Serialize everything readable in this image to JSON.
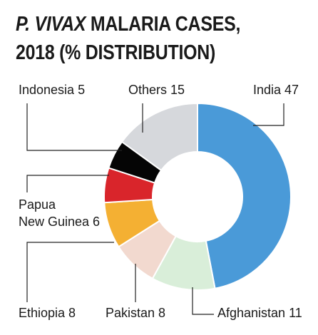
{
  "title": {
    "line1_italic": "P. VIVAX",
    "line1_rest": " MALARIA CASES,",
    "line2": "2018 (% DISTRIBUTION)"
  },
  "chart_data": {
    "type": "pie",
    "variant": "donut",
    "title": "P. VIVAX MALARIA CASES, 2018 (% DISTRIBUTION)",
    "slices": [
      {
        "name": "India",
        "value": 47,
        "label": "India 47",
        "color": "#4a9ad8"
      },
      {
        "name": "Afghanistan",
        "value": 11,
        "label": "Afghanistan 11",
        "color": "#d9eed9"
      },
      {
        "name": "Pakistan",
        "value": 8,
        "label": "Pakistan 8",
        "color": "#f2d9cf"
      },
      {
        "name": "Ethiopia",
        "value": 8,
        "label": "Ethiopia 8",
        "color": "#f4b033"
      },
      {
        "name": "Papua New Guinea",
        "value": 6,
        "label": "Papua New Guinea 6",
        "color": "#d9252b"
      },
      {
        "name": "Indonesia",
        "value": 5,
        "label": "Indonesia 5",
        "color": "#050505"
      },
      {
        "name": "Others",
        "value": 15,
        "label": "Others 15",
        "color": "#d6d8dc"
      }
    ]
  },
  "labels": {
    "india": "India 47",
    "others": "Others 15",
    "indonesia": "Indonesia 5",
    "png_line1": "Papua",
    "png_line2": "New Guinea 6",
    "ethiopia": "Ethiopia 8",
    "pakistan": "Pakistan 8",
    "afghanistan": "Afghanistan 11"
  }
}
